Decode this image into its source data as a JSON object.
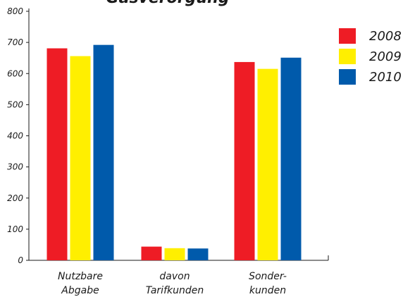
{
  "chart_data": {
    "type": "bar",
    "title": "Gasverorgung",
    "categories": [
      [
        "Nutzbare",
        "Abgabe"
      ],
      [
        "davon",
        "Tarifkunden"
      ],
      [
        "Sonder-",
        "kunden"
      ]
    ],
    "series": [
      {
        "name": "2008",
        "color": "#ee1c25",
        "values": [
          681,
          44,
          637
        ]
      },
      {
        "name": "2009",
        "color": "#ffef00",
        "values": [
          656,
          39,
          615
        ]
      },
      {
        "name": "2010",
        "color": "#005aab",
        "values": [
          692,
          38,
          651
        ]
      }
    ],
    "yticks": [
      "0",
      "100",
      "200",
      "300",
      "400",
      "500",
      "600",
      "700",
      "800"
    ],
    "ylim": [
      0,
      800
    ],
    "legend_position": "right",
    "grid": false
  }
}
